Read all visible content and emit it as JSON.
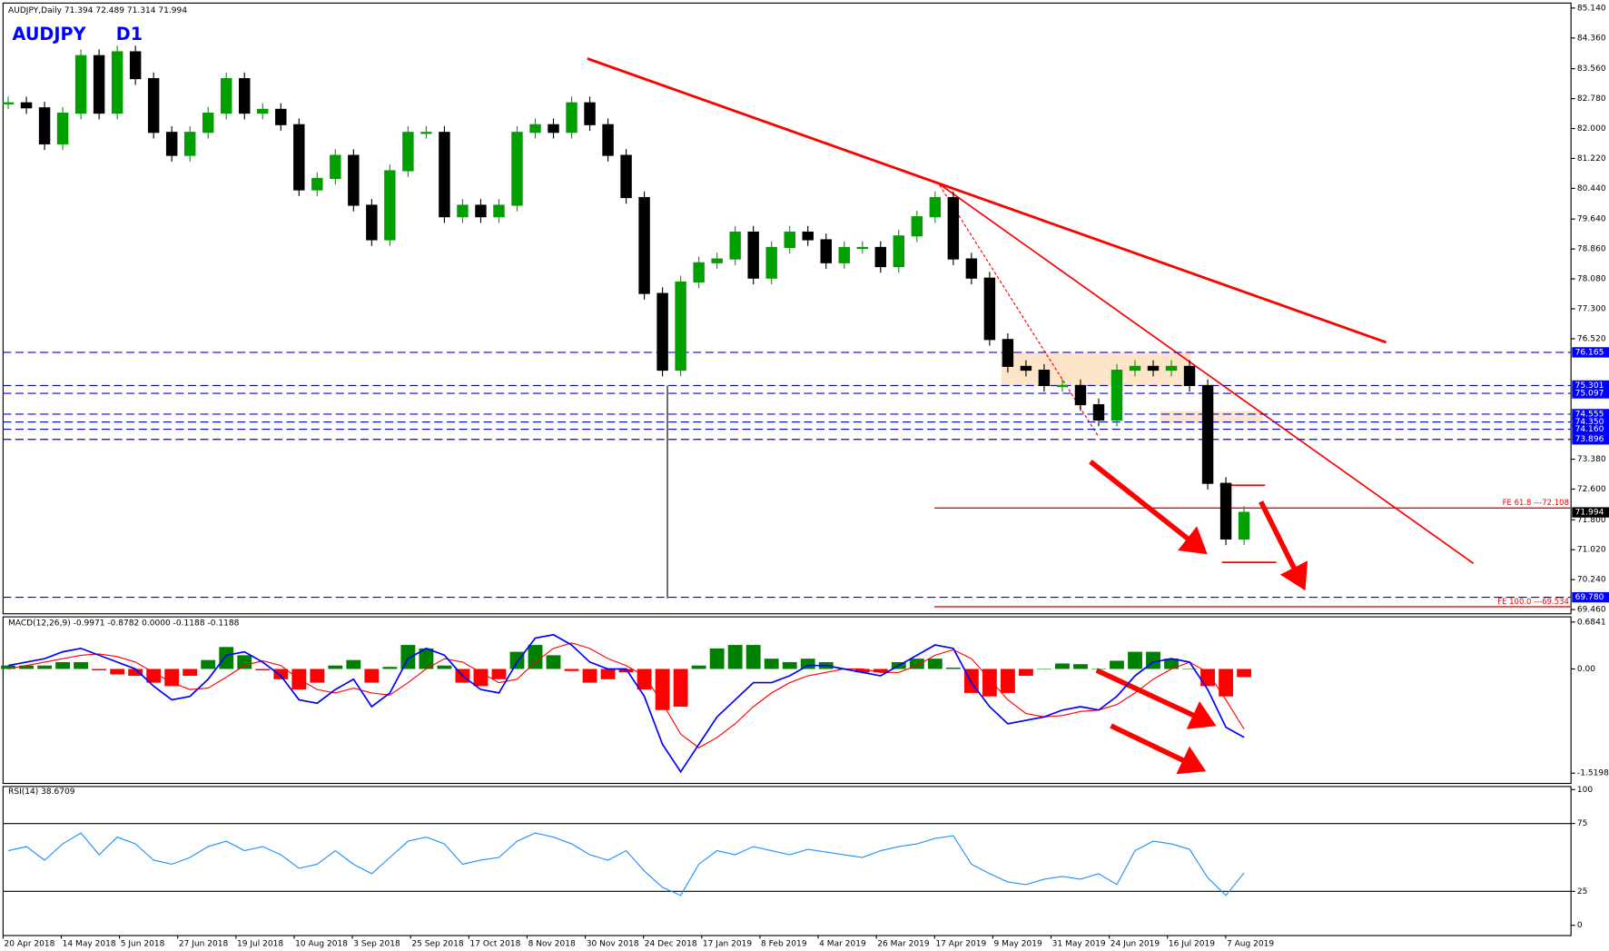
{
  "chart_data": [
    {
      "type": "candlestick",
      "title": "AUDJPY,Daily  71.394 72.489 71.314 71.994",
      "symbol": "AUDJPY",
      "timeframe": "D1",
      "x_labels": [
        "20 Apr 2018",
        "14 May 2018",
        "5 Jun 2018",
        "27 Jun 2018",
        "19 Jul 2018",
        "10 Aug 2018",
        "3 Sep 2018",
        "25 Sep 2018",
        "17 Oct 2018",
        "8 Nov 2018",
        "30 Nov 2018",
        "24 Dec 2018",
        "17 Jan 2019",
        "8 Feb 2019",
        "4 Mar 2019",
        "26 Mar 2019",
        "17 Apr 2019",
        "9 May 2019",
        "31 May 2019",
        "24 Jun 2019",
        "16 Jul 2019",
        "7 Aug 2019"
      ],
      "values": [
        82.67,
        82.54,
        81.6,
        82.4,
        83.9,
        82.4,
        84.0,
        83.3,
        81.9,
        81.3,
        81.9,
        82.4,
        83.3,
        82.4,
        82.5,
        82.1,
        80.4,
        80.7,
        81.3,
        80.0,
        79.1,
        80.9,
        81.9,
        81.9,
        79.7,
        80.0,
        79.7,
        80.0,
        81.9,
        82.1,
        81.9,
        82.67,
        82.1,
        81.3,
        80.2,
        77.7,
        75.7,
        78.0,
        78.5,
        78.6,
        79.3,
        78.1,
        78.9,
        79.3,
        79.1,
        78.5,
        78.9,
        78.9,
        78.4,
        79.2,
        79.7,
        80.2,
        78.6,
        78.1,
        76.5,
        75.8,
        75.7,
        75.3,
        75.3,
        74.8,
        74.4,
        75.7,
        75.8,
        75.7,
        75.8,
        75.3,
        72.75,
        71.3,
        71.994
      ],
      "up_color": "#00a000",
      "down_color": "#000000",
      "ylim": [
        69.35,
        85.27
      ],
      "yticks": [
        {
          "value": 85.14,
          "label": "85.140"
        },
        {
          "value": 84.36,
          "label": "84.360"
        },
        {
          "value": 83.56,
          "label": "83.560"
        },
        {
          "value": 82.78,
          "label": "82.780"
        },
        {
          "value": 82.0,
          "label": "82.000"
        },
        {
          "value": 81.22,
          "label": "81.220"
        },
        {
          "value": 80.44,
          "label": "80.440"
        },
        {
          "value": 79.64,
          "label": "79.640"
        },
        {
          "value": 78.86,
          "label": "78.860"
        },
        {
          "value": 78.08,
          "label": "78.080"
        },
        {
          "value": 77.3,
          "label": "77.300"
        },
        {
          "value": 76.52,
          "label": "76.520"
        },
        {
          "value": 73.38,
          "label": "73.380"
        },
        {
          "value": 72.6,
          "label": "72.600"
        },
        {
          "value": 71.8,
          "label": "71.800"
        },
        {
          "value": 71.02,
          "label": "71.020"
        },
        {
          "value": 70.24,
          "label": "70.240"
        },
        {
          "value": 69.46,
          "label": "69.460"
        }
      ],
      "levels": [
        76.165,
        75.301,
        75.097,
        74.555,
        {
          "value": 74.35,
          "label": "74.350"
        },
        {
          "value": 74.16,
          "label": "74.160"
        },
        73.896,
        {
          "value": 69.78,
          "label": "69.780"
        }
      ],
      "level_color": "#0000ff",
      "current": 71.994,
      "fibo": [
        {
          "text": "FE 61.8 ---72.108",
          "value": 72.108
        },
        {
          "text": "FE 100.0 ---69.534",
          "value": 69.534
        }
      ],
      "fibo_color": "#ff0000"
    },
    {
      "type": "macd",
      "title": "MACD(12,26,9) -0.9971 -0.8782 0.0000 -0.1188 -0.1188",
      "ylim": [
        -1.64,
        0.76
      ],
      "yticks": [
        0.6841,
        {
          "value": 0,
          "label": "0.00"
        },
        -1.5198
      ],
      "main": [
        0.05,
        0.1,
        0.15,
        0.25,
        0.3,
        0.2,
        0.1,
        0.0,
        -0.25,
        -0.45,
        -0.4,
        -0.15,
        0.2,
        0.25,
        0.1,
        -0.1,
        -0.45,
        -0.5,
        -0.3,
        -0.15,
        -0.55,
        -0.35,
        0.15,
        0.3,
        0.2,
        -0.1,
        -0.3,
        -0.35,
        0.1,
        0.45,
        0.5,
        0.35,
        0.1,
        0.0,
        0.0,
        -0.4,
        -1.1,
        -1.5,
        -1.1,
        -0.7,
        -0.45,
        -0.2,
        -0.2,
        -0.1,
        0.05,
        0.05,
        0.0,
        -0.05,
        -0.1,
        0.05,
        0.2,
        0.35,
        0.3,
        -0.2,
        -0.55,
        -0.8,
        -0.75,
        -0.7,
        -0.6,
        -0.55,
        -0.6,
        -0.4,
        -0.1,
        0.1,
        0.15,
        0.1,
        -0.3,
        -0.85,
        -0.9971
      ],
      "signal": [
        0.0,
        0.05,
        0.1,
        0.15,
        0.2,
        0.22,
        0.18,
        0.1,
        -0.05,
        -0.2,
        -0.3,
        -0.28,
        -0.12,
        0.05,
        0.12,
        0.05,
        -0.15,
        -0.3,
        -0.35,
        -0.28,
        -0.35,
        -0.38,
        -0.2,
        0.0,
        0.15,
        0.1,
        -0.05,
        -0.2,
        -0.15,
        0.1,
        0.3,
        0.38,
        0.3,
        0.15,
        0.05,
        -0.1,
        -0.5,
        -0.95,
        -1.15,
        -1.0,
        -0.8,
        -0.55,
        -0.35,
        -0.2,
        -0.1,
        -0.05,
        0.0,
        0.0,
        -0.05,
        -0.05,
        0.05,
        0.2,
        0.28,
        0.15,
        -0.15,
        -0.45,
        -0.65,
        -0.7,
        -0.68,
        -0.62,
        -0.6,
        -0.52,
        -0.35,
        -0.15,
        0.0,
        0.1,
        -0.05,
        -0.45,
        -0.8782
      ],
      "histogram": [
        0.05,
        0.05,
        0.05,
        0.1,
        0.1,
        -0.02,
        -0.08,
        -0.1,
        -0.2,
        -0.25,
        -0.1,
        0.13,
        0.32,
        0.2,
        -0.02,
        -0.15,
        -0.3,
        -0.2,
        0.05,
        0.13,
        -0.2,
        0.03,
        0.35,
        0.3,
        0.05,
        -0.2,
        -0.25,
        -0.15,
        0.25,
        0.35,
        0.2,
        -0.03,
        -0.2,
        -0.15,
        -0.05,
        -0.3,
        -0.6,
        -0.55,
        0.05,
        0.3,
        0.35,
        0.35,
        0.15,
        0.1,
        0.15,
        0.1,
        0.0,
        -0.05,
        -0.05,
        0.1,
        0.15,
        0.15,
        0.02,
        -0.35,
        -0.4,
        -0.35,
        -0.1,
        0.0,
        0.08,
        0.07,
        0.0,
        0.12,
        0.25,
        0.25,
        0.15,
        0.0,
        -0.25,
        -0.4,
        -0.1188
      ],
      "main_color": "#0000ff",
      "signal_color": "#ff0000",
      "up_color": "#008000",
      "down_color": "#ff0000"
    },
    {
      "type": "line",
      "title": "RSI(14) 38.6709",
      "ylim": [
        0,
        100
      ],
      "yticks": [
        0,
        25,
        75,
        100
      ],
      "values": [
        55,
        58,
        48,
        60,
        68,
        52,
        65,
        60,
        48,
        45,
        50,
        58,
        62,
        55,
        58,
        52,
        42,
        45,
        55,
        45,
        38,
        50,
        62,
        65,
        60,
        45,
        48,
        50,
        62,
        68,
        65,
        60,
        52,
        48,
        55,
        40,
        28,
        22,
        45,
        55,
        52,
        58,
        55,
        52,
        56,
        54,
        52,
        50,
        55,
        58,
        60,
        64,
        66,
        45,
        38,
        32,
        30,
        34,
        36,
        34,
        38,
        30,
        55,
        62,
        60,
        56,
        35,
        22,
        38.6709
      ],
      "color": "#1e90ff"
    }
  ]
}
